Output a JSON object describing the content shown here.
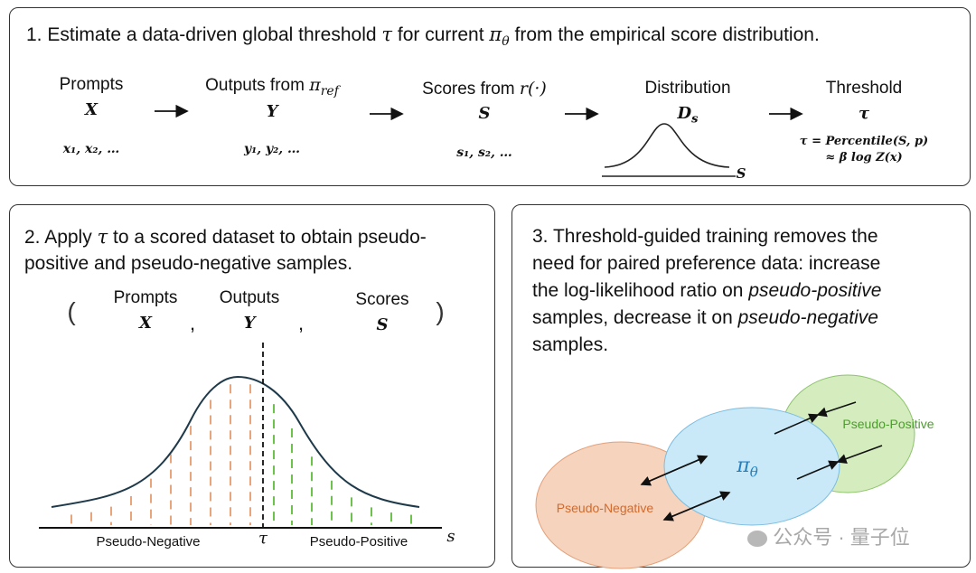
{
  "panel1": {
    "title_pre": "1. Estimate a data-driven global threshold ",
    "title_tau": "τ",
    "title_mid": " for current ",
    "title_pi": "π",
    "title_theta": "θ",
    "title_post": " from the empirical score distribution.",
    "prompts_label": "Prompts",
    "prompts_sym": "X",
    "prompts_samples": "x₁, x₂, …",
    "outputs_label": "Outputs from ",
    "outputs_pi": "π",
    "outputs_ref": "ref",
    "outputs_sym": "Y",
    "outputs_samples": "y₁, y₂, …",
    "scores_label": "Scores from ",
    "scores_r": "r(·)",
    "scores_sym": "S",
    "scores_samples": "s₁, s₂, …",
    "dist_label": "Distribution",
    "dist_sym": "D",
    "dist_sub": "s",
    "dist_axis": "S",
    "thresh_label": "Threshold",
    "thresh_sym": "τ",
    "formula1": "τ = Percentile(S, p)",
    "formula2": "≈ β log Z(x)"
  },
  "panel2": {
    "title_pre": "2. Apply ",
    "title_tau": "τ",
    "title_post1": " to a scored dataset to obtain pseudo-",
    "title_line2": "positive and pseudo-negative samples.",
    "open_paren": "(",
    "close_paren": ")",
    "comma": ",",
    "prompts_label": "Prompts",
    "prompts_sym": "X",
    "outputs_label": "Outputs",
    "outputs_sym": "Y",
    "scores_label": "Scores",
    "scores_sym": "S",
    "neg_label": "Pseudo-Negative",
    "pos_label": "Pseudo-Positive",
    "tau_label": "τ",
    "axis_label": "s"
  },
  "panel3": {
    "line1": "3. Threshold-guided training removes the",
    "line2": "need for paired preference data: increase",
    "line3_pre": "the log-likelihood ratio on ",
    "line3_ital": "pseudo-positive",
    "line4_pre": "samples, decrease it on ",
    "line4_ital": "pseudo-negative",
    "line5": "samples.",
    "pos_label": "Pseudo-Positive",
    "neg_label": "Pseudo-Negative",
    "center_pi": "π",
    "center_theta": "θ",
    "watermark": "公众号 · 量子位"
  },
  "colors": {
    "negative": "#e07a3a",
    "positive": "#4a9e2a",
    "neg_fill": "#f6d3bd",
    "pos_fill": "#d5ecbf",
    "center_fill": "#c9e9f8",
    "center_text": "#1f7fbf"
  }
}
